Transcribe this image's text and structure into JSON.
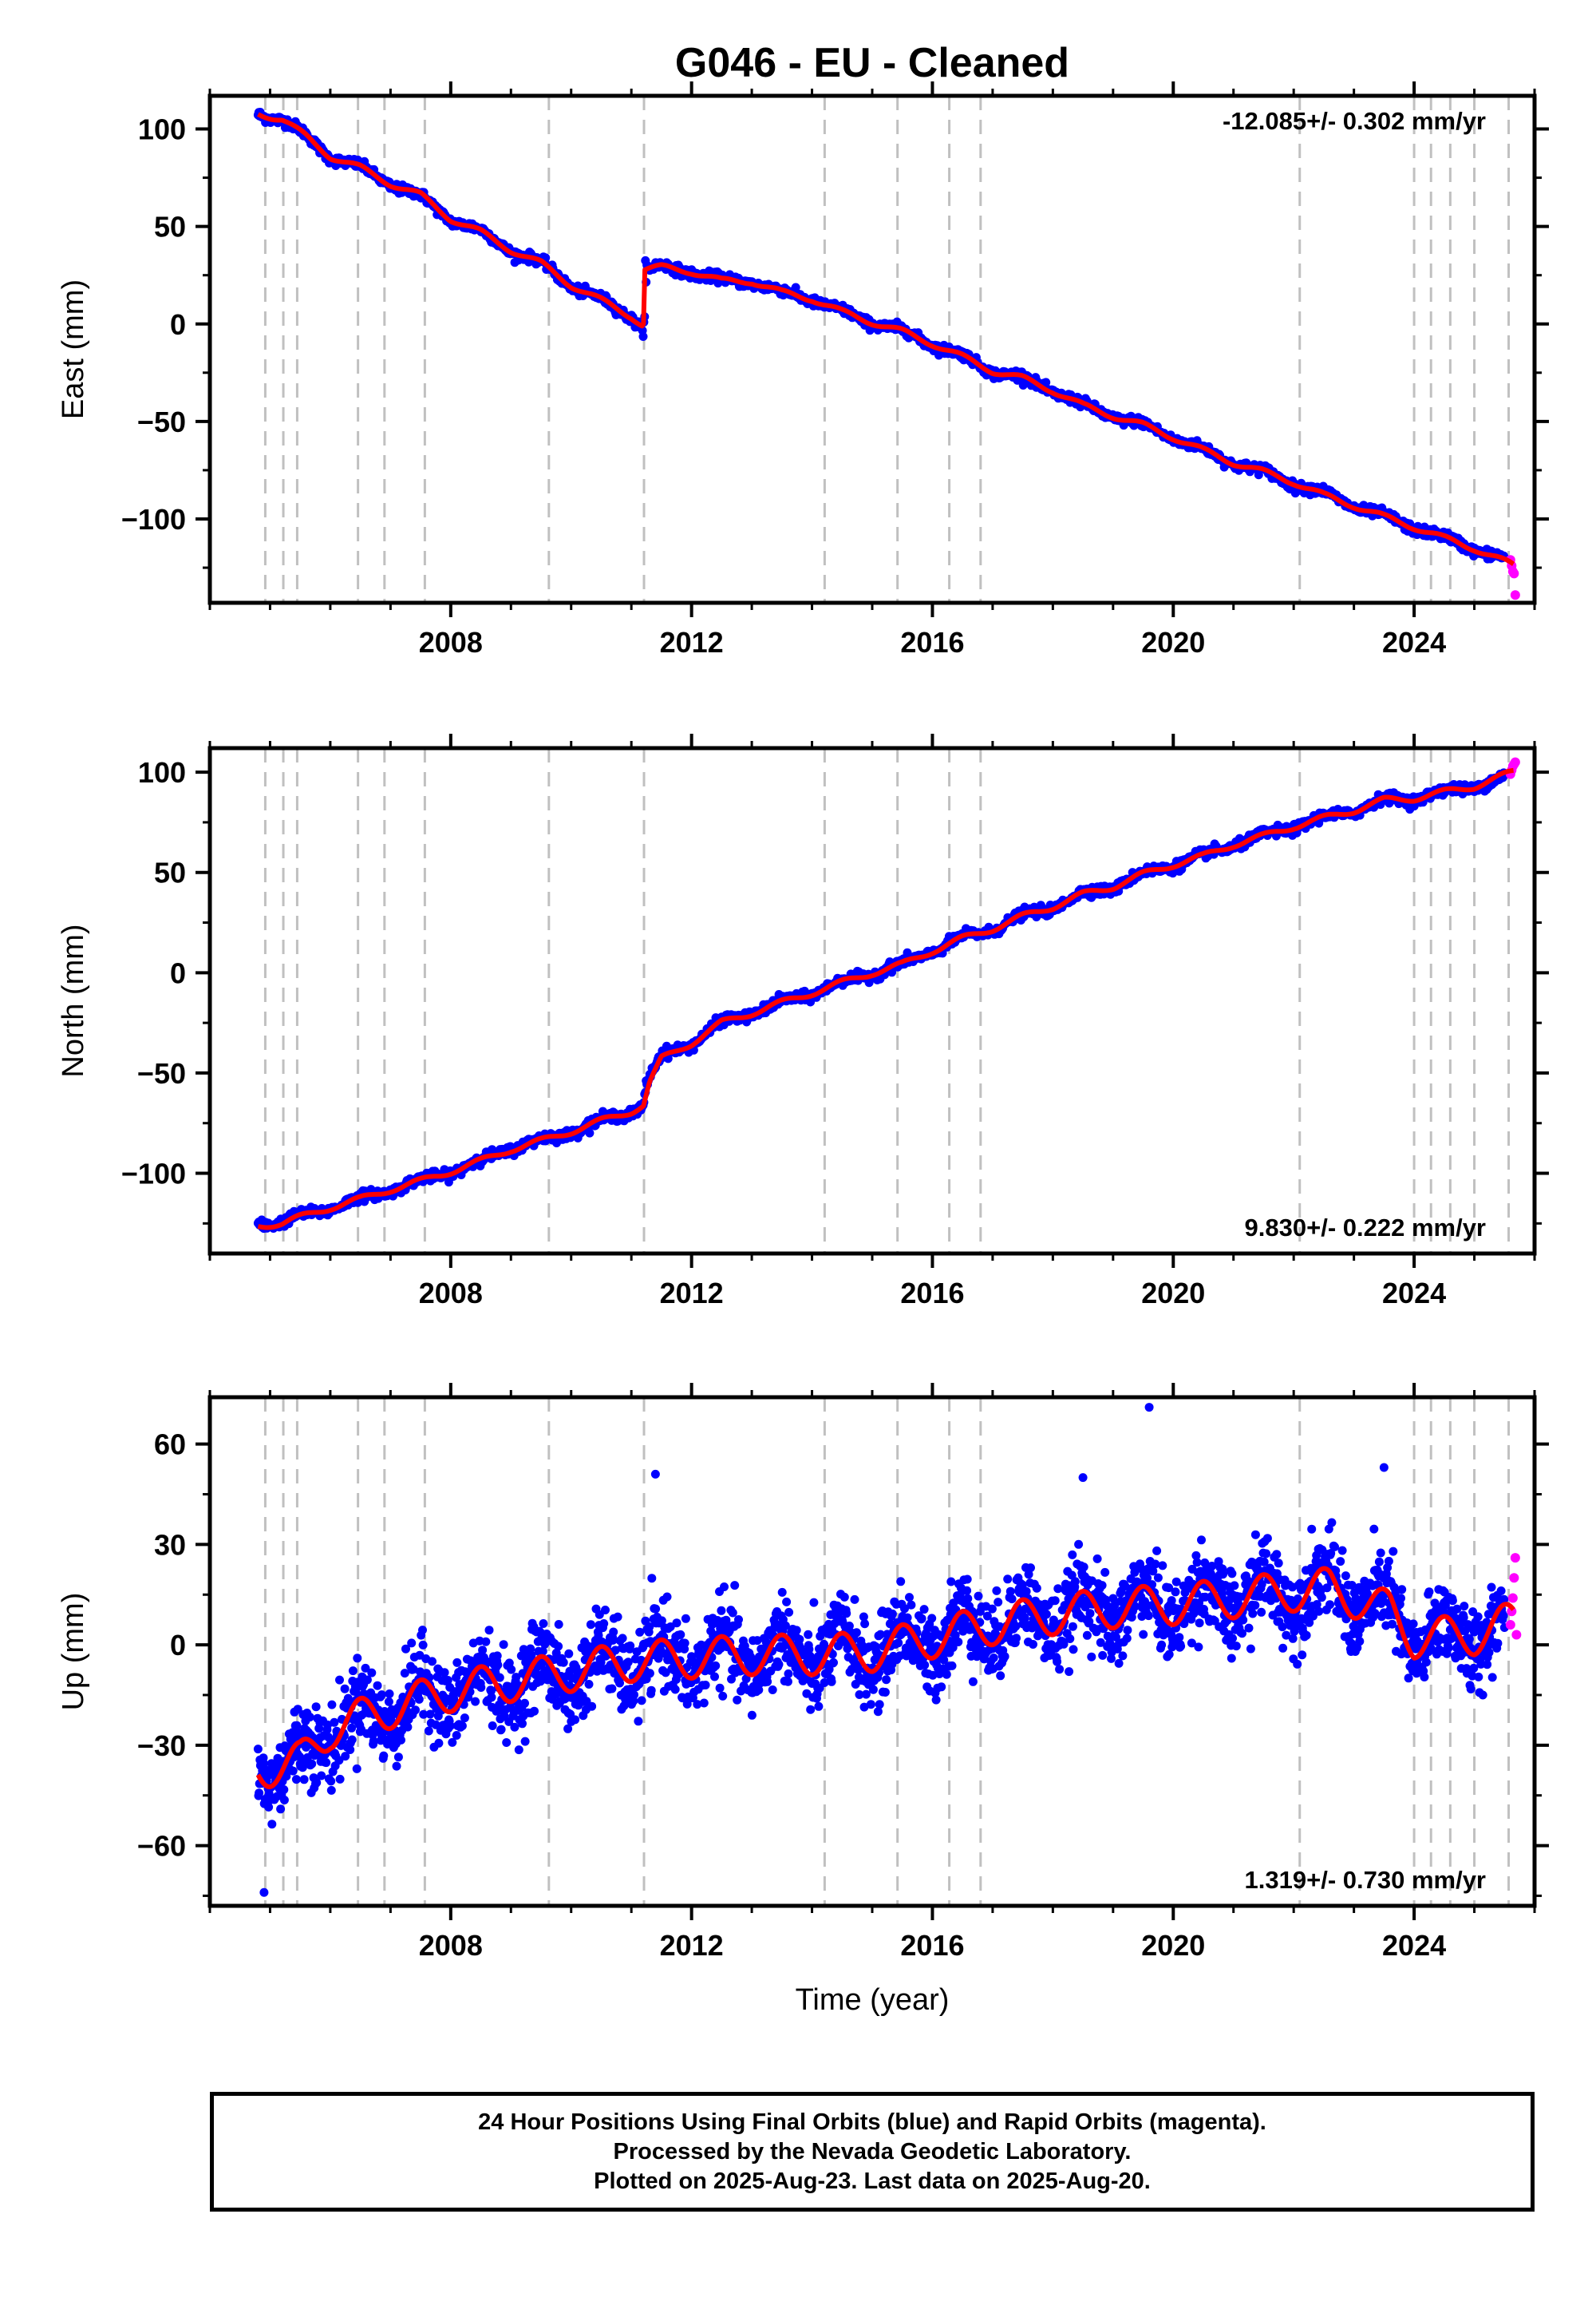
{
  "chart_data": [
    {
      "type": "scatter",
      "title": "G046  - EU - Cleaned",
      "ylabel": "East (mm)",
      "xlabel": "",
      "xlim": [
        2004.0,
        2026.0
      ],
      "ylim": [
        -143,
        117
      ],
      "yticks": [
        -100,
        -50,
        0,
        50,
        100
      ],
      "xticks": [
        2008,
        2012,
        2016,
        2020,
        2024
      ],
      "rate_label": "-12.085+/- 0.302 mm/yr",
      "rate_position": "top-right",
      "grid": false,
      "equipment_changes": [
        2004.92,
        2005.22,
        2005.45,
        2006.46,
        2006.9,
        2007.57,
        2009.63,
        2011.21,
        2014.21,
        2015.42,
        2016.28,
        2016.8,
        2022.1,
        2024.0,
        2024.28,
        2024.6,
        2025.0,
        2025.57
      ],
      "offsets": [
        {
          "x": 2011.21,
          "dy": 30
        }
      ],
      "series": [
        {
          "name": "Final Orbits",
          "color": "#0000ff",
          "x": [
            2004.8,
            2005.2,
            2005.6,
            2006.0,
            2006.5,
            2007.0,
            2007.5,
            2008.0,
            2008.5,
            2009.0,
            2009.5,
            2010.0,
            2010.5,
            2011.0,
            2011.2,
            2011.25,
            2011.5,
            2012.0,
            2012.5,
            2013.0,
            2013.5,
            2014.0,
            2014.5,
            2015.0,
            2015.5,
            2016.0,
            2016.5,
            2017.0,
            2017.5,
            2018.0,
            2018.5,
            2019.0,
            2019.5,
            2020.0,
            2020.5,
            2021.0,
            2021.5,
            2022.0,
            2022.5,
            2023.0,
            2023.5,
            2024.0,
            2024.5,
            2025.0,
            2025.5
          ],
          "y": [
            108,
            105,
            96,
            86,
            80,
            72,
            65,
            54,
            47,
            38,
            31,
            20,
            12,
            4,
            -2,
            28,
            29,
            27,
            22,
            22,
            16,
            13,
            6,
            1,
            -4,
            -10,
            -17,
            -24,
            -28,
            -34,
            -42,
            -47,
            -52,
            -58,
            -65,
            -71,
            -76,
            -82,
            -87,
            -93,
            -99,
            -104,
            -110,
            -115,
            -121
          ]
        },
        {
          "name": "Rapid Orbits",
          "color": "#ff00ff",
          "x": [
            2025.6,
            2025.62,
            2025.64,
            2025.66,
            2025.68
          ],
          "y": [
            -121,
            -124,
            -127,
            -128,
            -139
          ]
        },
        {
          "name": "Model",
          "color": "#ff0000",
          "x": [
            2004.8,
            2005.2,
            2005.6,
            2006.0,
            2006.5,
            2007.0,
            2007.5,
            2008.0,
            2008.5,
            2009.0,
            2009.5,
            2010.0,
            2010.5,
            2011.0,
            2011.2,
            2011.22,
            2011.5,
            2012.0,
            2012.5,
            2013.0,
            2013.5,
            2014.0,
            2014.5,
            2015.0,
            2015.5,
            2016.0,
            2016.5,
            2017.0,
            2017.5,
            2018.0,
            2018.5,
            2019.0,
            2019.5,
            2020.0,
            2020.5,
            2021.0,
            2021.5,
            2022.0,
            2022.5,
            2023.0,
            2023.5,
            2024.0,
            2024.5,
            2025.0,
            2025.65
          ],
          "y": [
            108,
            105,
            96,
            86,
            80,
            72,
            66,
            54,
            47,
            38,
            31,
            20,
            12,
            4,
            -1,
            28,
            29,
            27,
            22,
            22,
            16,
            13,
            6,
            1,
            -4,
            -10,
            -17,
            -24,
            -28,
            -34,
            -42,
            -47,
            -52,
            -58,
            -65,
            -71,
            -76,
            -81,
            -88,
            -93,
            -99,
            -104,
            -110,
            -115,
            -124
          ]
        }
      ]
    },
    {
      "type": "scatter",
      "title": "",
      "ylabel": "North (mm)",
      "xlabel": "",
      "xlim": [
        2004.0,
        2026.0
      ],
      "ylim": [
        -140,
        112
      ],
      "yticks": [
        -100,
        -50,
        0,
        50,
        100
      ],
      "xticks": [
        2008,
        2012,
        2016,
        2020,
        2024
      ],
      "rate_label": "9.830+/- 0.222 mm/yr",
      "rate_position": "bottom-right",
      "grid": false,
      "equipment_changes": [
        2004.92,
        2005.22,
        2005.45,
        2006.46,
        2006.9,
        2007.57,
        2009.63,
        2011.21,
        2014.21,
        2015.42,
        2016.28,
        2016.8,
        2022.1,
        2024.0,
        2024.28,
        2024.6,
        2025.0,
        2025.57
      ],
      "series": [
        {
          "name": "Final Orbits",
          "color": "#0000ff",
          "x": [
            2004.8,
            2005.2,
            2005.6,
            2006.0,
            2006.5,
            2007.0,
            2007.5,
            2008.0,
            2008.5,
            2009.0,
            2009.5,
            2010.0,
            2010.5,
            2011.0,
            2011.2,
            2011.25,
            2011.5,
            2012.0,
            2012.5,
            2013.0,
            2013.5,
            2014.0,
            2014.5,
            2015.0,
            2015.5,
            2016.0,
            2016.5,
            2017.0,
            2017.5,
            2018.0,
            2018.5,
            2019.0,
            2019.5,
            2020.0,
            2020.5,
            2021.0,
            2021.5,
            2022.0,
            2022.5,
            2023.0,
            2023.5,
            2024.0,
            2024.5,
            2025.0,
            2025.5
          ],
          "y": [
            -125,
            -124,
            -121,
            -117,
            -113,
            -108,
            -104,
            -99,
            -94,
            -87,
            -84,
            -79,
            -74,
            -69,
            -66,
            -55,
            -42,
            -35,
            -25,
            -20,
            -15,
            -10,
            -5,
            0,
            4,
            11,
            17,
            22,
            28,
            33,
            39,
            43,
            49,
            54,
            58,
            64,
            68,
            73,
            77,
            81,
            86,
            87,
            90,
            93,
            97
          ]
        },
        {
          "name": "Rapid Orbits",
          "color": "#ff00ff",
          "x": [
            2025.6,
            2025.62,
            2025.64,
            2025.66,
            2025.68
          ],
          "y": [
            99,
            101,
            103,
            104,
            105
          ]
        },
        {
          "name": "Model",
          "color": "#ff0000",
          "x": [
            2004.8,
            2005.2,
            2005.6,
            2006.0,
            2006.5,
            2007.0,
            2007.5,
            2008.0,
            2008.5,
            2009.0,
            2009.5,
            2010.0,
            2010.5,
            2011.0,
            2011.2,
            2011.3,
            2011.5,
            2012.0,
            2012.5,
            2013.0,
            2013.5,
            2014.0,
            2014.5,
            2015.0,
            2015.5,
            2016.0,
            2016.5,
            2017.0,
            2017.5,
            2018.0,
            2018.5,
            2019.0,
            2019.5,
            2020.0,
            2020.5,
            2021.0,
            2021.5,
            2022.0,
            2022.5,
            2023.0,
            2023.5,
            2024.0,
            2024.5,
            2025.0,
            2025.65
          ],
          "y": [
            -126,
            -125,
            -121,
            -117,
            -113,
            -108,
            -104,
            -99,
            -94,
            -88,
            -84,
            -79,
            -74,
            -69,
            -66,
            -55,
            -43,
            -35,
            -25,
            -20,
            -15,
            -10,
            -5,
            0,
            4,
            11,
            17,
            22,
            28,
            33,
            39,
            43,
            49,
            54,
            58,
            64,
            68,
            73,
            77,
            81,
            86,
            87,
            90,
            93,
            100
          ]
        }
      ]
    },
    {
      "type": "scatter",
      "title": "",
      "ylabel": "Up (mm)",
      "xlabel": "Time (year)",
      "xlim": [
        2004.0,
        2026.0
      ],
      "ylim": [
        -78,
        74
      ],
      "yticks": [
        -60,
        -30,
        0,
        30,
        60
      ],
      "xticks": [
        2008,
        2012,
        2016,
        2020,
        2024
      ],
      "rate_label": "1.319+/- 0.730 mm/yr",
      "rate_position": "bottom-right",
      "grid": false,
      "equipment_changes": [
        2004.92,
        2005.22,
        2005.45,
        2006.46,
        2006.9,
        2007.57,
        2009.63,
        2011.21,
        2014.21,
        2015.42,
        2016.28,
        2016.8,
        2022.1,
        2024.0,
        2024.28,
        2024.6,
        2025.0,
        2025.57
      ],
      "seasonal_amplitude_mm": 6,
      "scatter_sd_mm": 6,
      "outliers": [
        [
          2004.9,
          -74
        ],
        [
          2011.4,
          51
        ],
        [
          2018.5,
          50
        ],
        [
          2019.6,
          71
        ],
        [
          2023.5,
          53
        ]
      ],
      "series": [
        {
          "name": "Final Orbits",
          "color": "#0000ff",
          "x": [
            2004.8,
            2005.5,
            2006.0,
            2007.0,
            2008.0,
            2009.0,
            2010.0,
            2011.0,
            2012.0,
            2013.0,
            2014.0,
            2015.0,
            2016.0,
            2017.0,
            2018.0,
            2019.0,
            2020.0,
            2021.0,
            2022.0,
            2022.6,
            2023.0,
            2023.6,
            2024.0,
            2025.0,
            2025.5
          ],
          "y": [
            -37,
            -35,
            -25,
            -19,
            -14,
            -11,
            -8,
            -5,
            -4,
            -3,
            -3,
            -2,
            2,
            6,
            9,
            11,
            12,
            14,
            16,
            17,
            14,
            10,
            2,
            3,
            6
          ]
        },
        {
          "name": "Rapid Orbits",
          "color": "#ff00ff",
          "x": [
            2025.6,
            2025.62,
            2025.64,
            2025.66,
            2025.68,
            2025.7
          ],
          "y": [
            6,
            10,
            14,
            20,
            26,
            3
          ]
        },
        {
          "name": "Model",
          "color": "#ff0000",
          "x": [
            2004.8,
            2005.5,
            2006.0,
            2007.0,
            2008.0,
            2009.0,
            2010.0,
            2011.0,
            2012.0,
            2013.0,
            2014.0,
            2015.0,
            2016.0,
            2017.0,
            2018.0,
            2019.0,
            2020.0,
            2021.0,
            2022.0,
            2022.6,
            2023.0,
            2023.6,
            2024.0,
            2025.0,
            2025.65
          ],
          "y": [
            -37,
            -35,
            -25,
            -19,
            -14,
            -11,
            -8,
            -5,
            -4,
            -3,
            -3,
            -2,
            2,
            6,
            9,
            11,
            12,
            14,
            16,
            17,
            14,
            10,
            2,
            3,
            7
          ]
        }
      ]
    }
  ],
  "footer": {
    "line1": "24 Hour Positions Using Final Orbits (blue) and Rapid Orbits (magenta).",
    "line2": "Processed by the Nevada Geodetic Laboratory.",
    "line3": "Plotted on 2025-Aug-23. Last data on 2025-Aug-20."
  }
}
